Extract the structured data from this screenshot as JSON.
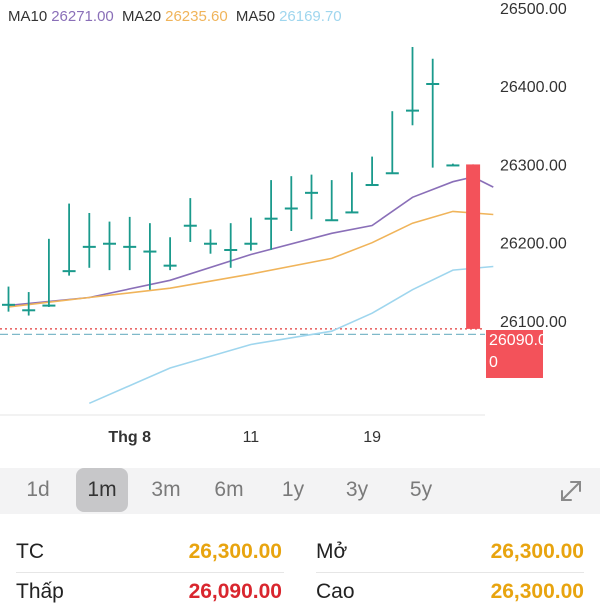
{
  "ma": {
    "ma10_label": "MA10",
    "ma10_value": "26271.00",
    "ma20_label": "MA20",
    "ma20_value": "26235.60",
    "ma50_label": "MA50",
    "ma50_value": "26169.70",
    "ma10_color": "#8a6fb8",
    "ma20_color": "#f0b45a",
    "ma50_color": "#9fd6ee"
  },
  "price_tag": {
    "line1": "26090.00",
    "line2": "0",
    "color": "#f3525a"
  },
  "chart_data": {
    "type": "candlestick",
    "ylim": [
      25980,
      26510
    ],
    "y_ticks": [
      {
        "value": 26500,
        "label": "26500.00"
      },
      {
        "value": 26400,
        "label": "26400.00"
      },
      {
        "value": 26300,
        "label": "26300.00"
      },
      {
        "value": 26200,
        "label": "26200.00"
      },
      {
        "value": 26100,
        "label": "26100.00"
      }
    ],
    "x_ticks": [
      {
        "index": 6,
        "label": "Thg 8"
      },
      {
        "index": 12,
        "label": "11"
      },
      {
        "index": 18,
        "label": "19"
      }
    ],
    "up_color": "#1a9a8c",
    "down_color": "#f3525a",
    "candles": [
      {
        "o": 26122,
        "h": 26144,
        "l": 26112,
        "c": 26122
      },
      {
        "o": 26115,
        "h": 26137,
        "l": 26107,
        "c": 26115
      },
      {
        "o": 26119,
        "h": 26205,
        "l": 26118,
        "c": 26121
      },
      {
        "o": 26163,
        "h": 26250,
        "l": 26158,
        "c": 26165
      },
      {
        "o": 26196,
        "h": 26238,
        "l": 26168,
        "c": 26196
      },
      {
        "o": 26200,
        "h": 26227,
        "l": 26165,
        "c": 26200
      },
      {
        "o": 26196,
        "h": 26233,
        "l": 26165,
        "c": 26196
      },
      {
        "o": 26190,
        "h": 26225,
        "l": 26140,
        "c": 26190
      },
      {
        "o": 26172,
        "h": 26207,
        "l": 26165,
        "c": 26172
      },
      {
        "o": 26223,
        "h": 26257,
        "l": 26201,
        "c": 26223
      },
      {
        "o": 26200,
        "h": 26217,
        "l": 26186,
        "c": 26200
      },
      {
        "o": 26192,
        "h": 26225,
        "l": 26168,
        "c": 26192
      },
      {
        "o": 26200,
        "h": 26232,
        "l": 26190,
        "c": 26200
      },
      {
        "o": 26232,
        "h": 26280,
        "l": 26191,
        "c": 26232
      },
      {
        "o": 26245,
        "h": 26285,
        "l": 26215,
        "c": 26245
      },
      {
        "o": 26265,
        "h": 26287,
        "l": 26230,
        "c": 26265
      },
      {
        "o": 26230,
        "h": 26280,
        "l": 26228,
        "c": 26230
      },
      {
        "o": 26240,
        "h": 26290,
        "l": 26238,
        "c": 26240
      },
      {
        "o": 26275,
        "h": 26310,
        "l": 26273,
        "c": 26275
      },
      {
        "o": 26290,
        "h": 26368,
        "l": 26288,
        "c": 26290
      },
      {
        "o": 26370,
        "h": 26450,
        "l": 26350,
        "c": 26370
      },
      {
        "o": 26404,
        "h": 26435,
        "l": 26296,
        "c": 26404
      },
      {
        "o": 26300,
        "h": 26301,
        "l": 26299,
        "c": 26300
      },
      {
        "o": 26300,
        "h": 26300,
        "l": 26090,
        "c": 26090
      }
    ],
    "series": [
      {
        "name": "MA10",
        "color": "#8a6fb8",
        "points": [
          [
            0,
            26120
          ],
          [
            4,
            26130
          ],
          [
            8,
            26152
          ],
          [
            12,
            26185
          ],
          [
            16,
            26212
          ],
          [
            18,
            26222
          ],
          [
            20,
            26258
          ],
          [
            22,
            26278
          ],
          [
            23,
            26284
          ],
          [
            24,
            26271
          ]
        ]
      },
      {
        "name": "MA20",
        "color": "#f0b45a",
        "points": [
          [
            0,
            26118
          ],
          [
            4,
            26130
          ],
          [
            8,
            26142
          ],
          [
            12,
            26160
          ],
          [
            16,
            26180
          ],
          [
            18,
            26200
          ],
          [
            20,
            26225
          ],
          [
            22,
            26240
          ],
          [
            24,
            26236
          ]
        ]
      },
      {
        "name": "MA50",
        "color": "#9fd6ee",
        "points": [
          [
            4,
            25995
          ],
          [
            8,
            26040
          ],
          [
            12,
            26070
          ],
          [
            16,
            26087
          ],
          [
            18,
            26110
          ],
          [
            20,
            26140
          ],
          [
            22,
            26165
          ],
          [
            24,
            26169.7
          ]
        ]
      }
    ],
    "reference_lines": [
      {
        "value": 26090,
        "color": "#e23a3a",
        "style": "dotted"
      },
      {
        "value": 26083,
        "color": "#7fb9c9",
        "style": "dashed"
      }
    ]
  },
  "ranges": [
    "1d",
    "1m",
    "3m",
    "6m",
    "1y",
    "3y",
    "5y"
  ],
  "active_range": "1m",
  "stats": {
    "tc_label": "TC",
    "tc_value": "26,300.00",
    "open_label": "Mở",
    "open_value": "26,300.00",
    "low_label": "Thấp",
    "low_value": "26,090.00",
    "high_label": "Cao",
    "high_value": "26,300.00"
  }
}
